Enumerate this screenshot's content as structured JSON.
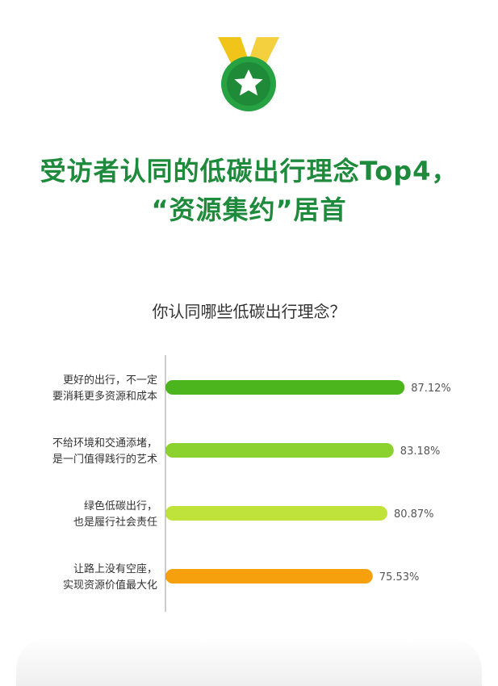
{
  "headline": {
    "line1": "受访者认同的低碳出行理念Top4，",
    "line2": "“资源集约”居首"
  },
  "question": "你认同哪些低碳出行理念？",
  "colors": {
    "title_green": "#1e8a3c",
    "bar1": "#4cb51e",
    "bar2": "#8bd22e",
    "bar3": "#bfe33a",
    "bar4": "#f5a00c",
    "medal_ribbon": "#f0c419",
    "medal_disc": "#27a243"
  },
  "chart_data": {
    "type": "bar",
    "orientation": "horizontal",
    "categories": [
      [
        "更好的出行，不一定",
        "要消耗更多资源和成本"
      ],
      [
        "不给环境和交通添堵，",
        "是一门值得践行的艺术"
      ],
      [
        "绿色低碳出行，",
        "也是履行社会责任"
      ],
      [
        "让路上没有空座，",
        "实现资源价值最大化"
      ]
    ],
    "values": [
      87.12,
      83.18,
      80.87,
      75.53
    ],
    "value_labels": [
      "87.12%",
      "83.18%",
      "80.87%",
      "75.53%"
    ],
    "unit": "%"
  }
}
